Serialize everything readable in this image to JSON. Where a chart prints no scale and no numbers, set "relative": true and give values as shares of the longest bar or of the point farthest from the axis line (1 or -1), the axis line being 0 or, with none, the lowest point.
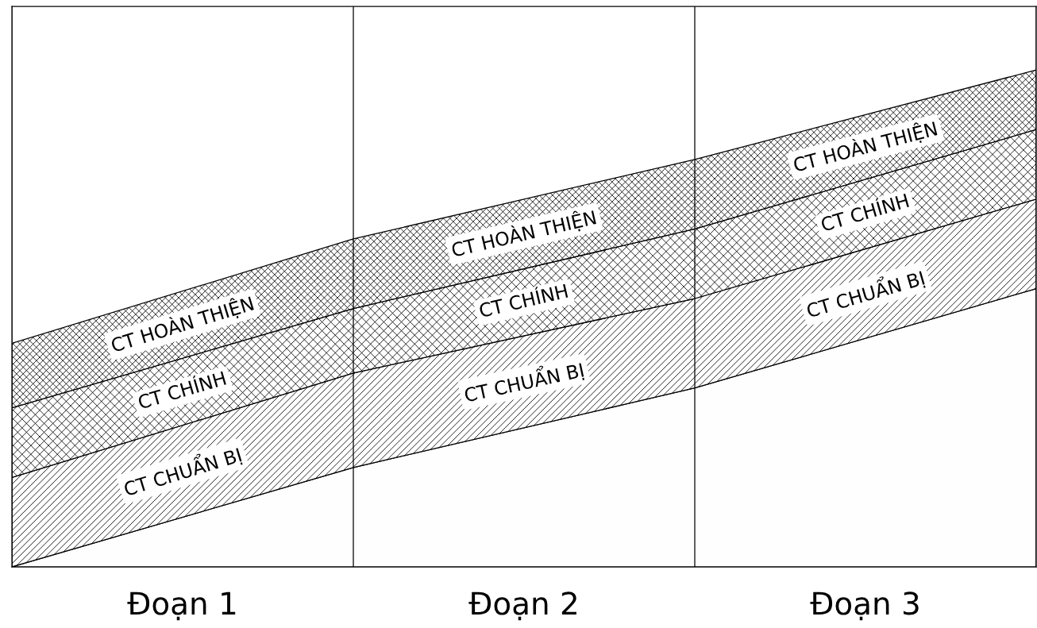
{
  "chart_data": {
    "type": "area",
    "stacked": true,
    "relative": true,
    "categories": [
      null,
      null,
      null,
      null
    ],
    "grid": "x",
    "series": [
      {
        "color": "#fefefe",
        "values": [
          0,
          0.2,
          0.36,
          0.56
        ]
      },
      {
        "name": "CT CHUẨN BỊ",
        "color": "#000000",
        "values": [
          0.18,
          0.19,
          0.18,
          0.18
        ]
      },
      {
        "name": "CT CHÍNH",
        "color": "#000000",
        "values": [
          0.14,
          0.13,
          0.14,
          0.14
        ]
      },
      {
        "name": "CT HOÀN THIỆN",
        "color": "#000000",
        "values": [
          0.13,
          0.14,
          0.14,
          0.12
        ]
      }
    ],
    "annotations": [
      "Đoạn 1",
      "Đoạn 2",
      "Đoạn 3"
    ]
  }
}
